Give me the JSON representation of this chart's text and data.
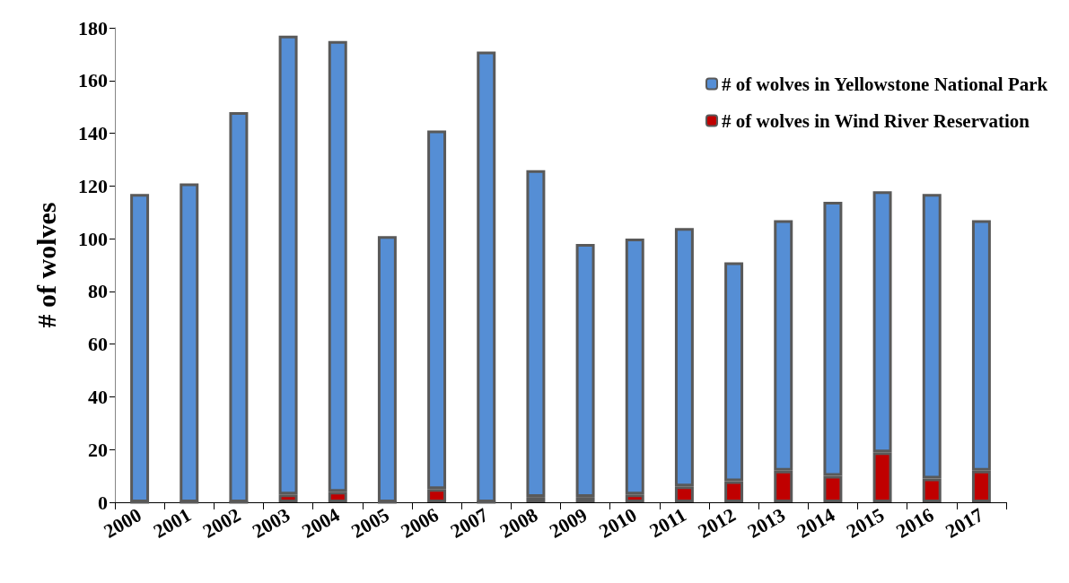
{
  "chart_data": {
    "type": "bar",
    "stacked": true,
    "ylabel": "# of wolves",
    "categories": [
      "2000",
      "2001",
      "2002",
      "2003",
      "2004",
      "2005",
      "2006",
      "2007",
      "2008",
      "2009",
      "2010",
      "2011",
      "2012",
      "2013",
      "2014",
      "2015",
      "2016",
      "2017"
    ],
    "series": [
      {
        "name": "# of wolves in Wind River Reservation",
        "color": "#c00000",
        "values": [
          0,
          0,
          0,
          3,
          4,
          0,
          5,
          0,
          2,
          2,
          3,
          6,
          8,
          12,
          10,
          19,
          9,
          12
        ]
      },
      {
        "name": "# of wolves in Yellowstone National Park",
        "color": "#558ed5",
        "values": [
          117,
          121,
          148,
          174,
          171,
          101,
          136,
          171,
          124,
          96,
          97,
          98,
          83,
          95,
          104,
          99,
          108,
          95
        ]
      }
    ],
    "ylim": [
      0,
      180
    ],
    "yticks": [
      0,
      20,
      40,
      60,
      80,
      100,
      120,
      140,
      160,
      180
    ],
    "grid": false,
    "legend": "top right"
  }
}
